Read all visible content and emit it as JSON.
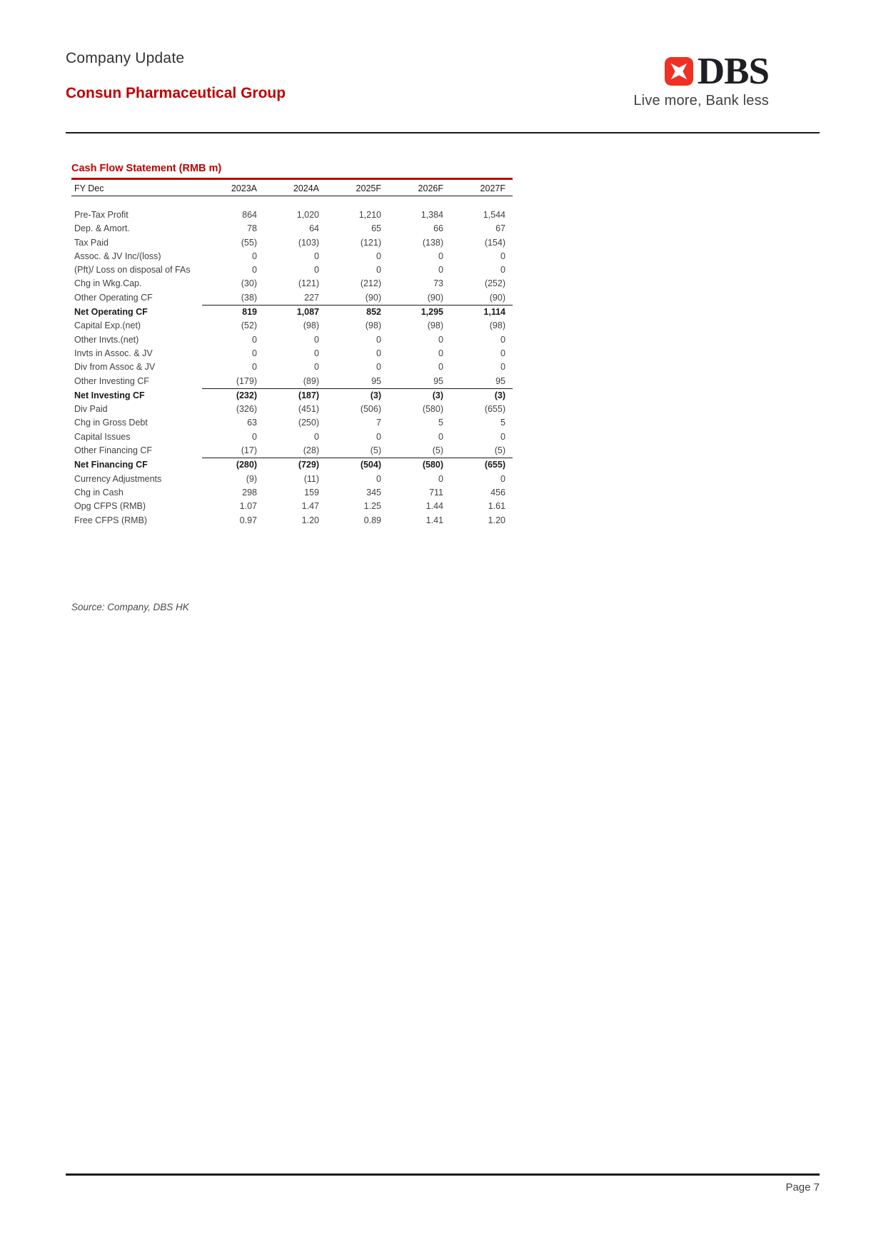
{
  "header": {
    "report_type": "Company Update",
    "company_name": "Consun Pharmaceutical Group",
    "logo": {
      "brand": "DBS",
      "tagline": "Live more, Bank less",
      "brand_red": "#ee3124"
    }
  },
  "table": {
    "title": "Cash Flow Statement (RMB m)",
    "columns": [
      "FY Dec",
      "2023A",
      "2024A",
      "2025F",
      "2026F",
      "2027F"
    ],
    "rows": [
      {
        "label": "Pre-Tax Profit",
        "values": [
          "864",
          "1,020",
          "1,210",
          "1,384",
          "1,544"
        ]
      },
      {
        "label": "Dep. & Amort.",
        "values": [
          "78",
          "64",
          "65",
          "66",
          "67"
        ]
      },
      {
        "label": "Tax Paid",
        "values": [
          "(55)",
          "(103)",
          "(121)",
          "(138)",
          "(154)"
        ]
      },
      {
        "label": "Assoc. & JV Inc/(loss)",
        "values": [
          "0",
          "0",
          "0",
          "0",
          "0"
        ]
      },
      {
        "label": "(Pft)/ Loss on disposal of FAs",
        "values": [
          "0",
          "0",
          "0",
          "0",
          "0"
        ]
      },
      {
        "label": "Chg in Wkg.Cap.",
        "values": [
          "(30)",
          "(121)",
          "(212)",
          "73",
          "(252)"
        ]
      },
      {
        "label": "Other Operating CF",
        "values": [
          "(38)",
          "227",
          "(90)",
          "(90)",
          "(90)"
        ]
      },
      {
        "label": "Net Operating CF",
        "values": [
          "819",
          "1,087",
          "852",
          "1,295",
          "1,114"
        ],
        "bold": true,
        "rule_above": true
      },
      {
        "label": "Capital Exp.(net)",
        "values": [
          "(52)",
          "(98)",
          "(98)",
          "(98)",
          "(98)"
        ]
      },
      {
        "label": "Other Invts.(net)",
        "values": [
          "0",
          "0",
          "0",
          "0",
          "0"
        ]
      },
      {
        "label": "Invts in Assoc. & JV",
        "values": [
          "0",
          "0",
          "0",
          "0",
          "0"
        ]
      },
      {
        "label": "Div from Assoc & JV",
        "values": [
          "0",
          "0",
          "0",
          "0",
          "0"
        ]
      },
      {
        "label": "Other Investing CF",
        "values": [
          "(179)",
          "(89)",
          "95",
          "95",
          "95"
        ]
      },
      {
        "label": "Net Investing CF",
        "values": [
          "(232)",
          "(187)",
          "(3)",
          "(3)",
          "(3)"
        ],
        "bold": true,
        "rule_above": true
      },
      {
        "label": "Div Paid",
        "values": [
          "(326)",
          "(451)",
          "(506)",
          "(580)",
          "(655)"
        ]
      },
      {
        "label": "Chg in Gross Debt",
        "values": [
          "63",
          "(250)",
          "7",
          "5",
          "5"
        ]
      },
      {
        "label": "Capital Issues",
        "values": [
          "0",
          "0",
          "0",
          "0",
          "0"
        ]
      },
      {
        "label": "Other Financing CF",
        "values": [
          "(17)",
          "(28)",
          "(5)",
          "(5)",
          "(5)"
        ]
      },
      {
        "label": "Net Financing CF",
        "values": [
          "(280)",
          "(729)",
          "(504)",
          "(580)",
          "(655)"
        ],
        "bold": true,
        "rule_above": true
      },
      {
        "label": "Currency Adjustments",
        "values": [
          "(9)",
          "(11)",
          "0",
          "0",
          "0"
        ]
      },
      {
        "label": "Chg in Cash",
        "values": [
          "298",
          "159",
          "345",
          "711",
          "456"
        ]
      },
      {
        "label": "Opg CFPS (RMB)",
        "values": [
          "1.07",
          "1.47",
          "1.25",
          "1.44",
          "1.61"
        ]
      },
      {
        "label": "Free CFPS (RMB)",
        "values": [
          "0.97",
          "1.20",
          "0.89",
          "1.41",
          "1.20"
        ]
      }
    ]
  },
  "source_note": "Source: Company, DBS HK",
  "footer": {
    "page_label": "Page 7"
  },
  "colors": {
    "accent_red": "#c00000",
    "logo_red": "#ee3124",
    "text_dark": "#1a1a1a",
    "text_body": "#414141"
  }
}
